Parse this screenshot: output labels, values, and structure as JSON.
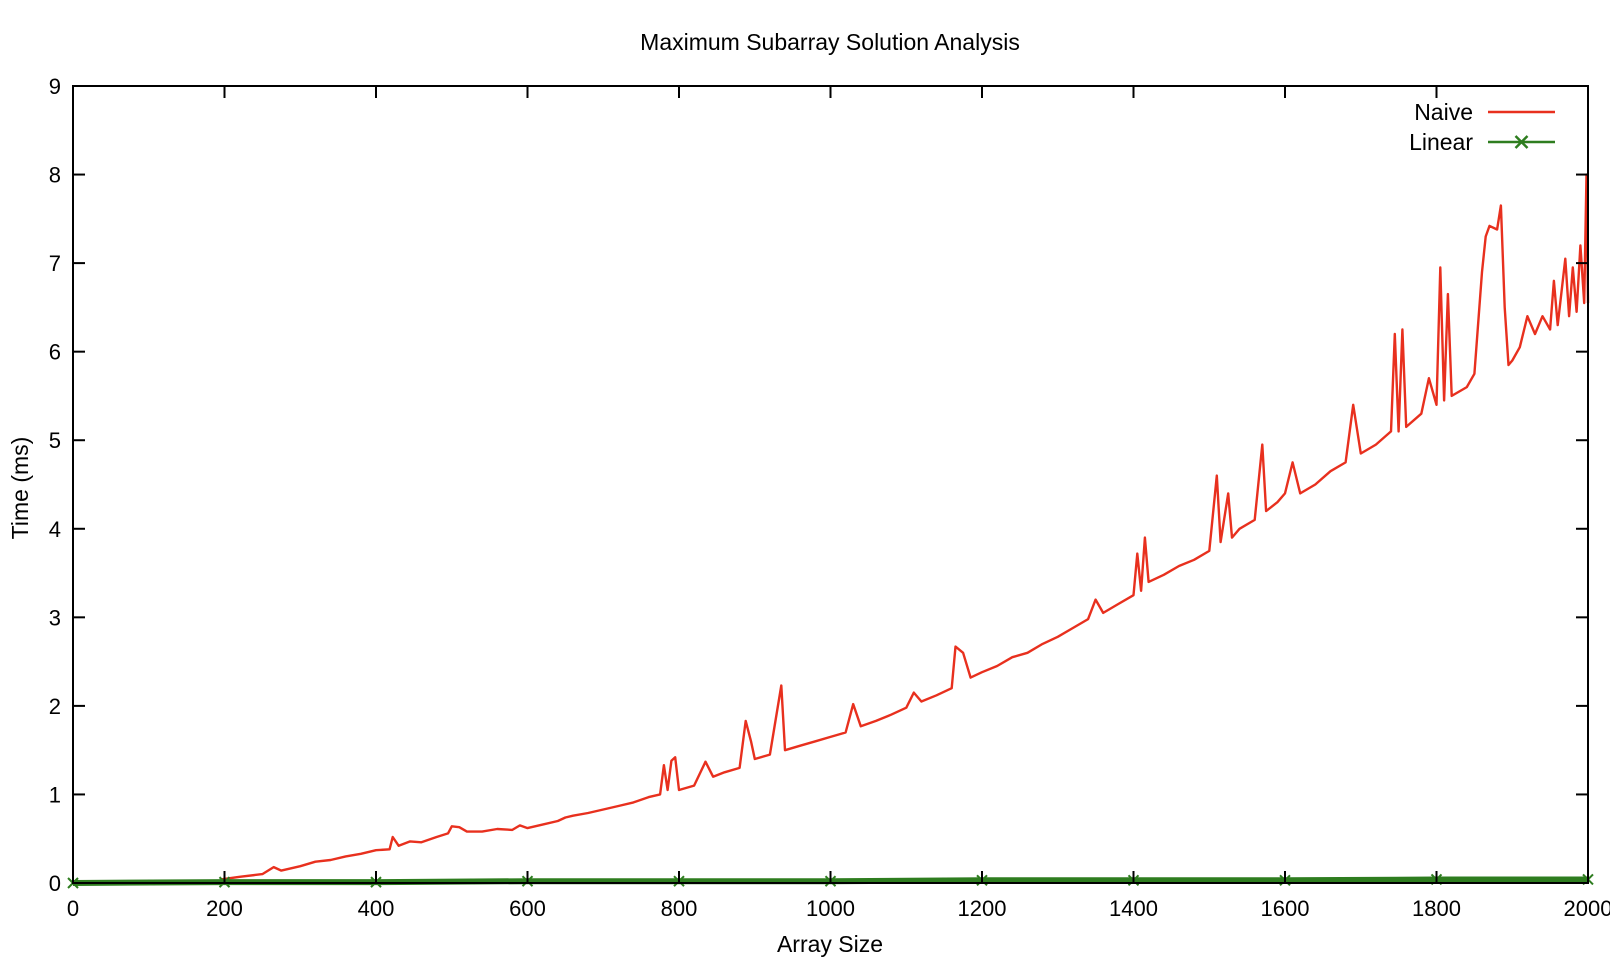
{
  "chart_data": {
    "type": "line",
    "title": "Maximum Subarray Solution Analysis",
    "xlabel": "Array Size",
    "ylabel": "Time (ms)",
    "xlim": [
      0,
      2000
    ],
    "ylim": [
      0,
      9
    ],
    "x_ticks": [
      "0",
      "200",
      "400",
      "600",
      "800",
      "1000",
      "1200",
      "1400",
      "1600",
      "1800",
      "2000"
    ],
    "y_ticks": [
      "0",
      "1",
      "2",
      "3",
      "4",
      "5",
      "6",
      "7",
      "8",
      "9"
    ],
    "grid": false,
    "legend_position": "top-right",
    "series": [
      {
        "name": "Naive",
        "color": "#e8301e",
        "marker": "none",
        "points": [
          [
            195,
            0.04
          ],
          [
            220,
            0.07
          ],
          [
            250,
            0.1
          ],
          [
            265,
            0.18
          ],
          [
            275,
            0.14
          ],
          [
            300,
            0.19
          ],
          [
            320,
            0.24
          ],
          [
            340,
            0.26
          ],
          [
            360,
            0.3
          ],
          [
            380,
            0.33
          ],
          [
            400,
            0.37
          ],
          [
            418,
            0.38
          ],
          [
            422,
            0.52
          ],
          [
            430,
            0.42
          ],
          [
            445,
            0.47
          ],
          [
            460,
            0.46
          ],
          [
            480,
            0.52
          ],
          [
            495,
            0.56
          ],
          [
            500,
            0.64
          ],
          [
            510,
            0.63
          ],
          [
            520,
            0.58
          ],
          [
            540,
            0.58
          ],
          [
            560,
            0.61
          ],
          [
            580,
            0.6
          ],
          [
            590,
            0.65
          ],
          [
            600,
            0.62
          ],
          [
            620,
            0.66
          ],
          [
            640,
            0.7
          ],
          [
            650,
            0.74
          ],
          [
            660,
            0.76
          ],
          [
            680,
            0.79
          ],
          [
            700,
            0.83
          ],
          [
            720,
            0.87
          ],
          [
            740,
            0.91
          ],
          [
            760,
            0.97
          ],
          [
            775,
            1.0
          ],
          [
            780,
            1.33
          ],
          [
            785,
            1.05
          ],
          [
            790,
            1.38
          ],
          [
            795,
            1.42
          ],
          [
            800,
            1.05
          ],
          [
            820,
            1.1
          ],
          [
            835,
            1.37
          ],
          [
            845,
            1.2
          ],
          [
            860,
            1.25
          ],
          [
            880,
            1.3
          ],
          [
            888,
            1.83
          ],
          [
            895,
            1.6
          ],
          [
            900,
            1.4
          ],
          [
            920,
            1.45
          ],
          [
            935,
            2.23
          ],
          [
            940,
            1.5
          ],
          [
            960,
            1.55
          ],
          [
            980,
            1.6
          ],
          [
            1000,
            1.65
          ],
          [
            1020,
            1.7
          ],
          [
            1030,
            2.02
          ],
          [
            1040,
            1.77
          ],
          [
            1060,
            1.83
          ],
          [
            1080,
            1.9
          ],
          [
            1100,
            1.98
          ],
          [
            1110,
            2.15
          ],
          [
            1120,
            2.05
          ],
          [
            1140,
            2.12
          ],
          [
            1160,
            2.2
          ],
          [
            1165,
            2.67
          ],
          [
            1175,
            2.6
          ],
          [
            1185,
            2.32
          ],
          [
            1200,
            2.38
          ],
          [
            1220,
            2.45
          ],
          [
            1240,
            2.55
          ],
          [
            1260,
            2.6
          ],
          [
            1280,
            2.7
          ],
          [
            1300,
            2.78
          ],
          [
            1320,
            2.88
          ],
          [
            1340,
            2.98
          ],
          [
            1350,
            3.2
          ],
          [
            1360,
            3.05
          ],
          [
            1380,
            3.15
          ],
          [
            1400,
            3.25
          ],
          [
            1405,
            3.72
          ],
          [
            1410,
            3.3
          ],
          [
            1415,
            3.9
          ],
          [
            1420,
            3.4
          ],
          [
            1440,
            3.48
          ],
          [
            1460,
            3.58
          ],
          [
            1480,
            3.65
          ],
          [
            1500,
            3.75
          ],
          [
            1510,
            4.6
          ],
          [
            1515,
            3.85
          ],
          [
            1525,
            4.4
          ],
          [
            1530,
            3.9
          ],
          [
            1540,
            4.0
          ],
          [
            1560,
            4.1
          ],
          [
            1570,
            4.95
          ],
          [
            1575,
            4.2
          ],
          [
            1590,
            4.3
          ],
          [
            1600,
            4.4
          ],
          [
            1610,
            4.75
          ],
          [
            1620,
            4.4
          ],
          [
            1640,
            4.5
          ],
          [
            1660,
            4.65
          ],
          [
            1680,
            4.75
          ],
          [
            1690,
            5.4
          ],
          [
            1700,
            4.85
          ],
          [
            1720,
            4.95
          ],
          [
            1740,
            5.1
          ],
          [
            1745,
            6.2
          ],
          [
            1750,
            5.1
          ],
          [
            1755,
            6.25
          ],
          [
            1760,
            5.15
          ],
          [
            1780,
            5.3
          ],
          [
            1790,
            5.7
          ],
          [
            1800,
            5.4
          ],
          [
            1805,
            6.95
          ],
          [
            1810,
            5.45
          ],
          [
            1815,
            6.65
          ],
          [
            1820,
            5.5
          ],
          [
            1840,
            5.6
          ],
          [
            1850,
            5.75
          ],
          [
            1860,
            6.9
          ],
          [
            1865,
            7.3
          ],
          [
            1870,
            7.42
          ],
          [
            1880,
            7.38
          ],
          [
            1885,
            7.65
          ],
          [
            1890,
            6.5
          ],
          [
            1895,
            5.85
          ],
          [
            1900,
            5.9
          ],
          [
            1910,
            6.05
          ],
          [
            1920,
            6.4
          ],
          [
            1930,
            6.2
          ],
          [
            1940,
            6.4
          ],
          [
            1950,
            6.25
          ],
          [
            1955,
            6.8
          ],
          [
            1960,
            6.3
          ],
          [
            1970,
            7.05
          ],
          [
            1975,
            6.4
          ],
          [
            1980,
            6.95
          ],
          [
            1985,
            6.45
          ],
          [
            1990,
            7.2
          ],
          [
            1995,
            6.55
          ],
          [
            1998,
            8.0
          ],
          [
            2000,
            6.55
          ]
        ]
      },
      {
        "name": "Linear",
        "color": "#2e7d1f",
        "marker": "x",
        "points": [
          [
            0,
            0.0
          ],
          [
            200,
            0.01
          ],
          [
            400,
            0.01
          ],
          [
            600,
            0.02
          ],
          [
            800,
            0.02
          ],
          [
            1000,
            0.02
          ],
          [
            1200,
            0.03
          ],
          [
            1400,
            0.03
          ],
          [
            1600,
            0.03
          ],
          [
            1800,
            0.04
          ],
          [
            2000,
            0.04
          ]
        ]
      }
    ]
  }
}
